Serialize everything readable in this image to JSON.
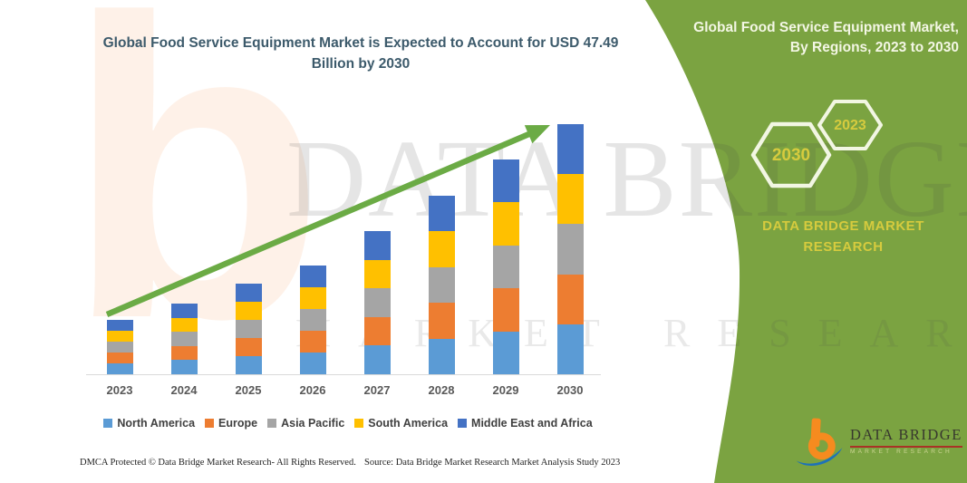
{
  "header": {
    "title": "Global Food Service Equipment Market is Expected to Account for USD 47.49 Billion by 2030"
  },
  "side_panel": {
    "title": "Global Food Service Equipment Market, By Regions, 2023 to 2030",
    "hexagons": [
      "2030",
      "2023"
    ],
    "brand": "DATA BRIDGE MARKET RESEARCH"
  },
  "watermark": {
    "letter": "b",
    "brand": "DATA BRIDGE",
    "sub": "MARKET RESEARCH"
  },
  "logo": {
    "name": "DATA BRIDGE",
    "tagline": "MARKET RESEARCH"
  },
  "footer": {
    "left": "DMCA Protected © Data Bridge Market Research-  All Rights Reserved.",
    "source": "Source: Data Bridge Market Research  Market Analysis Study 2023"
  },
  "colors": {
    "panel_green": "#7BA341",
    "arrow_green": "#6BAB45",
    "title_teal": "#3C5A6B",
    "accent_yellow": "#D6CB3E",
    "hex_outline": "#F2F6E3",
    "logo_orange": "#F68B1F",
    "logo_blue": "#1E72B8",
    "axis_gray": "#D9D9D9"
  },
  "chart_data": {
    "type": "bar",
    "stacked": true,
    "title": "Global Food Service Equipment Market is Expected to Account for USD 47.49 Billion by 2030",
    "unit": "USD Billion",
    "xlabel": "",
    "ylabel": "",
    "ylim": [
      0,
      50
    ],
    "grid": false,
    "legend_position": "bottom",
    "trend_arrow": true,
    "categories": [
      "2023",
      "2024",
      "2025",
      "2026",
      "2027",
      "2028",
      "2029",
      "2030"
    ],
    "totals": [
      10.35,
      13.4,
      17.2,
      20.65,
      27.2,
      33.9,
      40.8,
      47.49
    ],
    "series": [
      {
        "name": "North America",
        "color": "#5B9BD5",
        "values": [
          2.07,
          2.68,
          3.44,
          4.13,
          5.44,
          6.78,
          8.16,
          9.5
        ]
      },
      {
        "name": "Europe",
        "color": "#ED7D31",
        "values": [
          2.07,
          2.68,
          3.44,
          4.13,
          5.44,
          6.78,
          8.16,
          9.5
        ]
      },
      {
        "name": "Asia Pacific",
        "color": "#A5A5A5",
        "values": [
          2.07,
          2.68,
          3.44,
          4.13,
          5.44,
          6.78,
          8.16,
          9.5
        ]
      },
      {
        "name": "South America",
        "color": "#FFC000",
        "values": [
          2.07,
          2.68,
          3.44,
          4.13,
          5.44,
          6.78,
          8.16,
          9.5
        ]
      },
      {
        "name": "Middle East and Africa",
        "color": "#4472C4",
        "values": [
          2.07,
          2.68,
          3.44,
          4.13,
          5.44,
          6.78,
          8.16,
          9.5
        ]
      }
    ]
  }
}
